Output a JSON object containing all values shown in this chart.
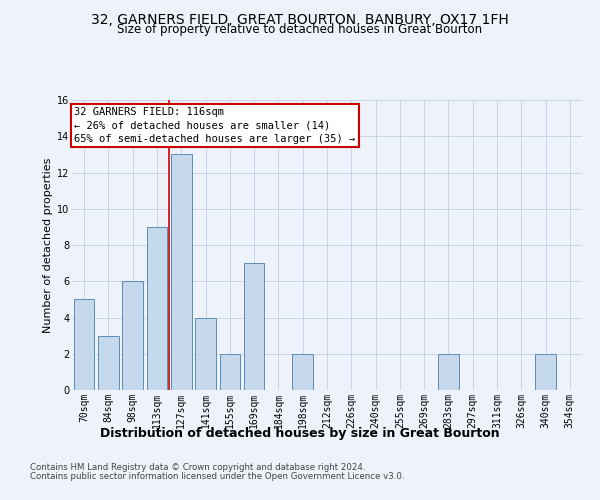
{
  "title": "32, GARNERS FIELD, GREAT BOURTON, BANBURY, OX17 1FH",
  "subtitle": "Size of property relative to detached houses in Great Bourton",
  "xlabel": "Distribution of detached houses by size in Great Bourton",
  "ylabel": "Number of detached properties",
  "footnote1": "Contains HM Land Registry data © Crown copyright and database right 2024.",
  "footnote2": "Contains public sector information licensed under the Open Government Licence v3.0.",
  "categories": [
    "70sqm",
    "84sqm",
    "98sqm",
    "113sqm",
    "127sqm",
    "141sqm",
    "155sqm",
    "169sqm",
    "184sqm",
    "198sqm",
    "212sqm",
    "226sqm",
    "240sqm",
    "255sqm",
    "269sqm",
    "283sqm",
    "297sqm",
    "311sqm",
    "326sqm",
    "340sqm",
    "354sqm"
  ],
  "values": [
    5,
    3,
    6,
    9,
    13,
    4,
    2,
    7,
    0,
    2,
    0,
    0,
    0,
    0,
    0,
    2,
    0,
    0,
    0,
    2,
    0
  ],
  "bar_color": "#c6d9ec",
  "bar_edge_color": "#5b8db8",
  "vline_x": 3.5,
  "vline_color": "#cc0000",
  "annotation_text": "32 GARNERS FIELD: 116sqm\n← 26% of detached houses are smaller (14)\n65% of semi-detached houses are larger (35) →",
  "annotation_box_color": "white",
  "annotation_box_edge_color": "#cc0000",
  "ylim": [
    0,
    16
  ],
  "yticks": [
    0,
    2,
    4,
    6,
    8,
    10,
    12,
    14,
    16
  ],
  "grid_color": "#c8d4e8",
  "background_color": "#edf2fb",
  "title_fontsize": 10,
  "subtitle_fontsize": 8.5,
  "xlabel_fontsize": 9,
  "ylabel_fontsize": 8,
  "tick_fontsize": 7,
  "annot_fontsize": 7.5
}
